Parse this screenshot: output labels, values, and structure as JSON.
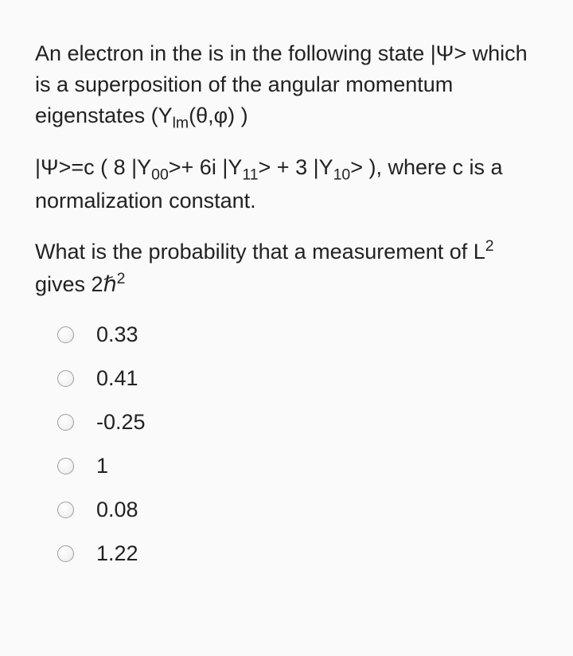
{
  "question": {
    "p1": "An electron in the is in the following state |Ψ> which is a superposition of the angular momentum eigenstates (Y",
    "p1_sub1": "lm",
    "p1_tail": "(θ,φ) )",
    "p2_lead": "|Ψ>=c ( 8 |Y",
    "p2_s1": "00",
    "p2_mid1": ">+ 6i |Y",
    "p2_s2": "11",
    "p2_mid2": "> + 3 |Y",
    "p2_s3": "10",
    "p2_tail": "> ), where c is a  normalization constant.",
    "p3_lead": "What is the probability that a measurement of  L",
    "p3_sup1": "2",
    "p3_mid": "  gives 2ℏ",
    "p3_sup2": "2"
  },
  "options": [
    {
      "label": "0.33"
    },
    {
      "label": "0.41"
    },
    {
      "label": "-0.25"
    },
    {
      "label": "1"
    },
    {
      "label": "0.08"
    },
    {
      "label": "1.22"
    }
  ]
}
